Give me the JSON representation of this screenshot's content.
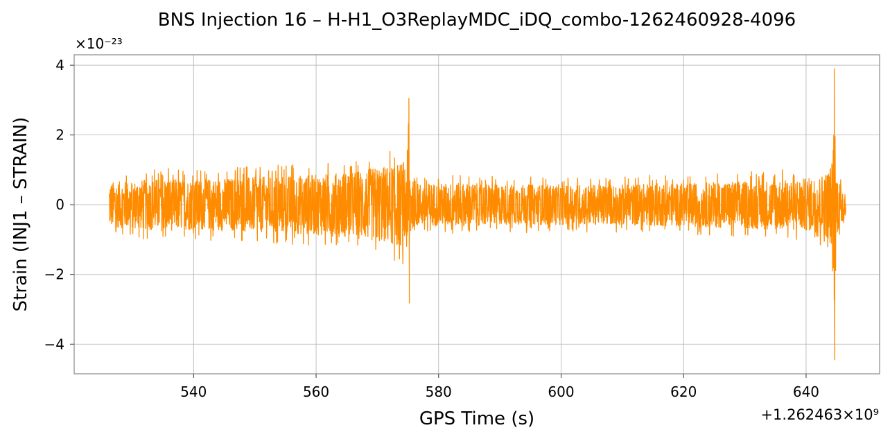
{
  "chart_data": {
    "type": "line",
    "title": "BNS Injection 16 – H-H1_O3ReplayMDC_iDQ_combo-1262460928-4096",
    "xlabel": "GPS Time (s)",
    "ylabel": "Strain (INJ1 – STRAIN)",
    "y_scale_label": "×10⁻²³",
    "x_offset_label": "+1.262463×10⁹",
    "x_ticks": [
      540,
      560,
      580,
      600,
      620,
      640
    ],
    "x_tick_labels": [
      "540",
      "560",
      "580",
      "600",
      "620",
      "640"
    ],
    "y_ticks": [
      4,
      2,
      0,
      -2,
      -4
    ],
    "y_tick_labels": [
      "4",
      "2",
      "0",
      "−2",
      "−4"
    ],
    "xlim": [
      520.5,
      652
    ],
    "ylim": [
      -4.85,
      4.3
    ],
    "grid": true,
    "series": [
      {
        "color": "#ff8c00",
        "x_range": [
          526.2,
          646.5
        ],
        "envelope_x": [
          526.2,
          530,
          535,
          540,
          545,
          550,
          555,
          560,
          565,
          568,
          570,
          572,
          574,
          574.8,
          575.1,
          575.5,
          576,
          580,
          585,
          590,
          595,
          600,
          605,
          610,
          615,
          620,
          625,
          630,
          635,
          640,
          642,
          643.5,
          644.2,
          644.6,
          645,
          645.5,
          646.5
        ],
        "envelope_amp": [
          0.9,
          0.95,
          1.05,
          1.0,
          1.05,
          1.1,
          1.15,
          1.2,
          1.3,
          1.4,
          1.5,
          1.55,
          1.7,
          1.9,
          2.9,
          1.1,
          0.85,
          0.85,
          0.85,
          0.8,
          0.8,
          0.8,
          0.8,
          0.8,
          0.85,
          0.85,
          0.9,
          0.95,
          1.0,
          1.05,
          1.1,
          1.35,
          1.7,
          4.2,
          1.2,
          0.9,
          0.7
        ],
        "peaks": [
          {
            "x": 575.15,
            "max": 3.05,
            "min": -2.82
          },
          {
            "x": 644.6,
            "max": 3.9,
            "min": -4.45
          }
        ]
      }
    ]
  }
}
